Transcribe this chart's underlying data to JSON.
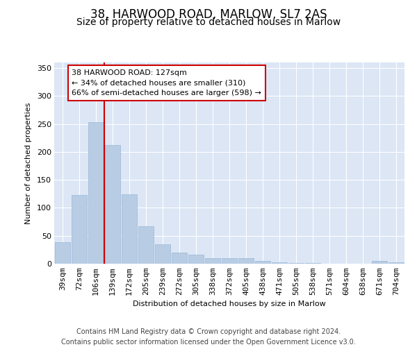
{
  "title": "38, HARWOOD ROAD, MARLOW, SL7 2AS",
  "subtitle": "Size of property relative to detached houses in Marlow",
  "xlabel": "Distribution of detached houses by size in Marlow",
  "ylabel": "Number of detached properties",
  "categories": [
    "39sqm",
    "72sqm",
    "106sqm",
    "139sqm",
    "172sqm",
    "205sqm",
    "239sqm",
    "272sqm",
    "305sqm",
    "338sqm",
    "372sqm",
    "405sqm",
    "438sqm",
    "471sqm",
    "505sqm",
    "538sqm",
    "571sqm",
    "604sqm",
    "638sqm",
    "671sqm",
    "704sqm"
  ],
  "values": [
    38,
    123,
    253,
    212,
    124,
    67,
    35,
    20,
    16,
    10,
    10,
    10,
    5,
    2,
    1,
    1,
    0,
    0,
    0,
    5,
    3
  ],
  "bar_color": "#b8cce4",
  "bar_edge_color": "#9ab8d8",
  "vline_x": 2.5,
  "vline_color": "#cc0000",
  "annotation_text": "38 HARWOOD ROAD: 127sqm\n← 34% of detached houses are smaller (310)\n66% of semi-detached houses are larger (598) →",
  "annotation_box_facecolor": "#ffffff",
  "annotation_box_edgecolor": "#cc0000",
  "ylim": [
    0,
    360
  ],
  "yticks": [
    0,
    50,
    100,
    150,
    200,
    250,
    300,
    350
  ],
  "fig_facecolor": "#ffffff",
  "plot_facecolor": "#dce6f5",
  "grid_color": "#ffffff",
  "title_fontsize": 12,
  "subtitle_fontsize": 10,
  "axis_fontsize": 8,
  "tick_fontsize": 8,
  "ylabel_fontsize": 8,
  "annotation_fontsize": 8,
  "footer_text": "Contains HM Land Registry data © Crown copyright and database right 2024.\nContains public sector information licensed under the Open Government Licence v3.0.",
  "footer_fontsize": 7
}
